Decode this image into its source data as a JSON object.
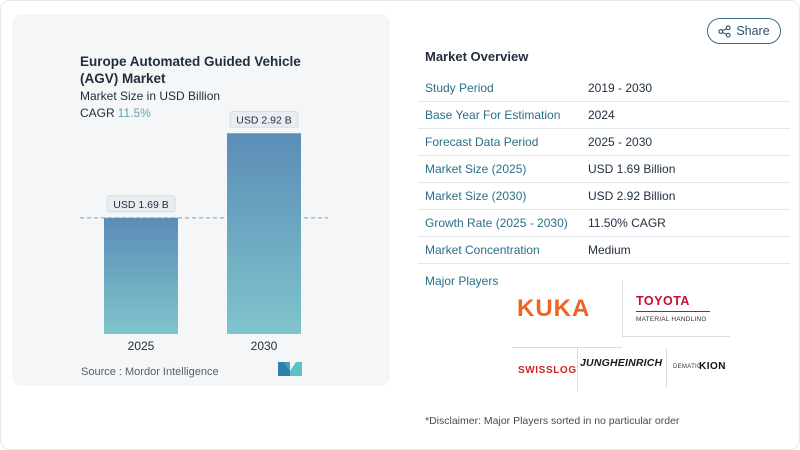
{
  "header": {
    "share_label": "Share"
  },
  "chart_card": {
    "title": "Europe Automated Guided Vehicle (AGV) Market",
    "subtitle": "Market Size in USD Billion",
    "cagr_label": "CAGR",
    "cagr_value": "11.5%",
    "source": "Source :  Mordor Intelligence"
  },
  "chart_data": {
    "type": "bar",
    "categories": [
      "2025",
      "2030"
    ],
    "values": [
      1.69,
      2.92
    ],
    "data_labels": [
      "USD 1.69 B",
      "USD 2.92 B"
    ],
    "title": "Europe Automated Guided Vehicle (AGV) Market",
    "subtitle": "Market Size in USD Billion",
    "xlabel": "",
    "ylabel": "",
    "ylim": [
      0,
      3.2
    ],
    "reference_line": 1.69,
    "grid": false,
    "colors": {
      "bar_top": "#5b8db7",
      "bar_bottom": "#7fc4cc"
    }
  },
  "overview": {
    "title": "Market Overview",
    "rows": [
      {
        "key": "Study Period",
        "value": "2019 - 2030"
      },
      {
        "key": "Base Year For Estimation",
        "value": "2024"
      },
      {
        "key": "Forecast Data Period",
        "value": "2025 - 2030"
      },
      {
        "key": "Market Size (2025)",
        "value": "USD 1.69 Billion"
      },
      {
        "key": "Market Size (2030)",
        "value": "USD 2.92 Billion"
      },
      {
        "key": "Growth Rate (2025 - 2030)",
        "value": "11.50% CAGR"
      },
      {
        "key": "Market Concentration",
        "value": "Medium"
      }
    ],
    "players_label": "Major Players",
    "players": {
      "kuka": "KUKA",
      "toyota": "TOYOTA",
      "toyota_sub": "MATERIAL HANDLING",
      "swisslog": "SWISSLOG",
      "jungheinrich": "JUNGHEINRICH",
      "dematic": "DEMATIC",
      "kion": "KION"
    },
    "disclaimer": "*Disclaimer: Major Players sorted in no particular order"
  }
}
